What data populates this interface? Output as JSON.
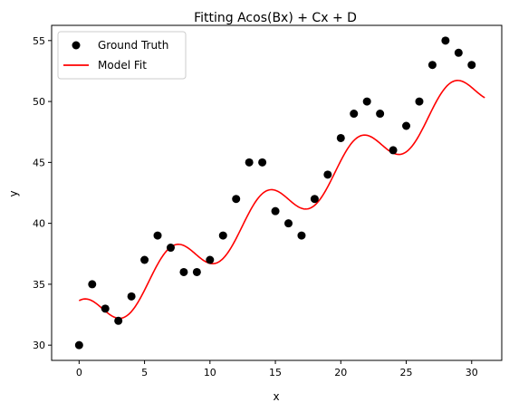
{
  "chart_data": {
    "type": "scatter",
    "title": "Fitting Acos(Bx) + Cx + D",
    "xlabel": "x",
    "ylabel": "y",
    "xlim": [
      -2.1,
      32.3
    ],
    "ylim": [
      28.75,
      56.25
    ],
    "xticks": [
      0,
      5,
      10,
      15,
      20,
      25,
      30
    ],
    "yticks": [
      30,
      35,
      40,
      45,
      50,
      55
    ],
    "grid": false,
    "legend_position": "top-left",
    "series": [
      {
        "name": "Ground Truth",
        "kind": "scatter",
        "color": "#000000",
        "x": [
          0,
          1,
          2,
          3,
          4,
          5,
          6,
          7,
          8,
          9,
          10,
          11,
          12,
          13,
          14,
          15,
          16,
          17,
          18,
          19,
          20,
          21,
          22,
          23,
          24,
          25,
          26,
          27,
          28,
          29,
          30
        ],
        "y": [
          30,
          35,
          33,
          32,
          34,
          37,
          39,
          38,
          36,
          36,
          37,
          39,
          42,
          45,
          45,
          41,
          40,
          39,
          42,
          44,
          47,
          49,
          50,
          49,
          46,
          48,
          50,
          53,
          55,
          54,
          53
        ]
      },
      {
        "name": "Model Fit",
        "kind": "line",
        "color": "#ff0000",
        "model": "A*cos(B*x) + C*x + D",
        "params": {
          "A": 1.77,
          "B": 0.883,
          "C": 0.63,
          "D": 31.88
        },
        "x_range": [
          0,
          31
        ]
      }
    ]
  }
}
